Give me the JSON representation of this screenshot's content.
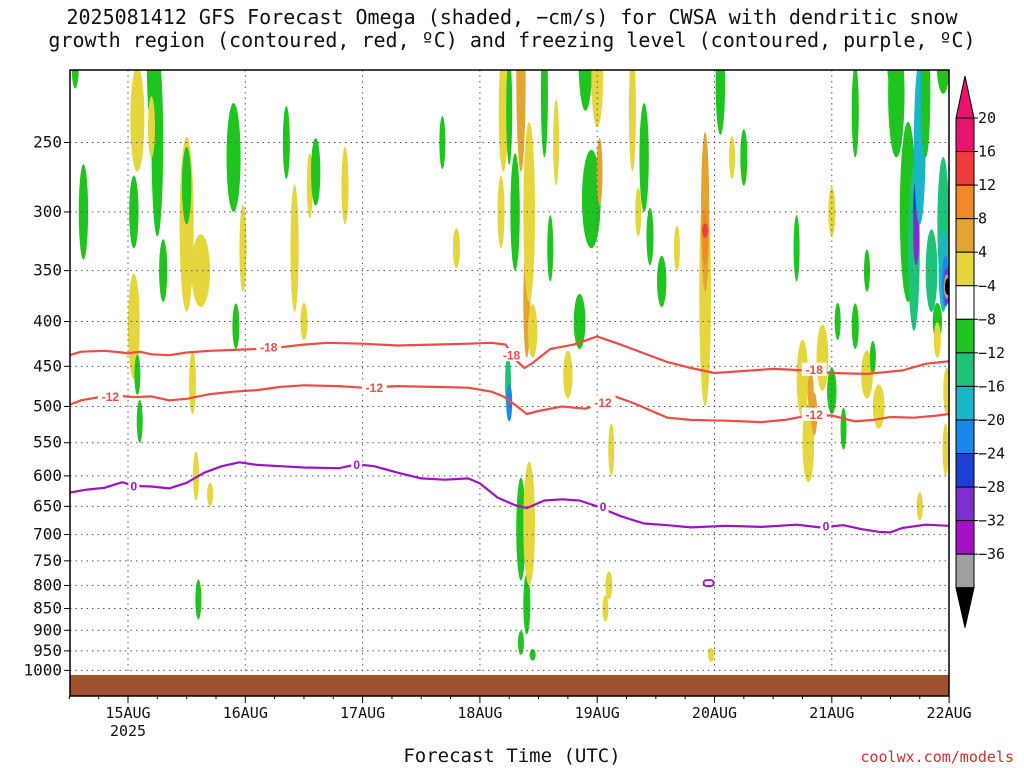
{
  "title_line1": "2025081412 GFS Forecast Omega (shaded, −cm/s) for CWSA with dendritic snow",
  "title_line2": "growth region (contoured, red, ºC) and freezing level (contoured, purple, ºC)",
  "xlabel": "Forecast Time (UTC)",
  "credit": "coolwx.com/models",
  "chart_data": {
    "type": "heatmap",
    "xlabel": "Forecast Time (UTC)",
    "ylabel": "",
    "x_tick_labels": [
      "15AUG",
      "16AUG",
      "17AUG",
      "18AUG",
      "19AUG",
      "20AUG",
      "21AUG",
      "22AUG"
    ],
    "x_year_label": "2025",
    "x_range_days": [
      14.5,
      22.0
    ],
    "y_tick_labels": [
      "250",
      "300",
      "350",
      "400",
      "450",
      "500",
      "550",
      "600",
      "650",
      "700",
      "750",
      "800",
      "850",
      "900",
      "950",
      "1000"
    ],
    "y_axis": "pressure (hPa, log scale, inverted)",
    "y_range": [
      200,
      1020
    ],
    "grid": true,
    "colorbar": {
      "labels": [
        "20",
        "16",
        "12",
        "8",
        "4",
        "−4",
        "−8",
        "−12",
        "−16",
        "−20",
        "−24",
        "−28",
        "−32",
        "−36"
      ],
      "colors": [
        "#e8136f",
        "#f03c3c",
        "#f08a28",
        "#e2a531",
        "#e6d63d",
        "#ffffff",
        "#1fc41f",
        "#1ec37a",
        "#1ab5c7",
        "#1a86e8",
        "#1c3fd6",
        "#7d2fd1",
        "#a313c4",
        "#a0a0a0"
      ],
      "over_color": "#e8136f",
      "under_color": "#000000"
    },
    "contours": [
      {
        "label": "-18",
        "color": "#f04c44",
        "points": [
          [
            14.5,
            437
          ],
          [
            14.6,
            433
          ],
          [
            14.8,
            432
          ],
          [
            14.95,
            434
          ],
          [
            15.0,
            435
          ],
          [
            15.1,
            433
          ],
          [
            15.2,
            436
          ],
          [
            15.35,
            437
          ],
          [
            15.5,
            434
          ],
          [
            15.7,
            432
          ],
          [
            15.9,
            431
          ],
          [
            16.1,
            430
          ],
          [
            16.3,
            428
          ],
          [
            16.5,
            425
          ],
          [
            16.7,
            423
          ],
          [
            17.0,
            424
          ],
          [
            17.3,
            426
          ],
          [
            17.6,
            425
          ],
          [
            17.9,
            424
          ],
          [
            18.1,
            423
          ],
          [
            18.22,
            425
          ],
          [
            18.3,
            442
          ],
          [
            18.38,
            452
          ],
          [
            18.45,
            446
          ],
          [
            18.6,
            430
          ],
          [
            18.8,
            425
          ],
          [
            19.0,
            416
          ],
          [
            19.2,
            425
          ],
          [
            19.4,
            435
          ],
          [
            19.6,
            445
          ],
          [
            19.8,
            452
          ],
          [
            20.0,
            458
          ],
          [
            20.2,
            456
          ],
          [
            20.5,
            453
          ],
          [
            20.8,
            455
          ],
          [
            21.0,
            458
          ],
          [
            21.3,
            459
          ],
          [
            21.6,
            455
          ],
          [
            21.8,
            447
          ],
          [
            22.0,
            444
          ]
        ],
        "labels_at": [
          [
            16.2,
            428
          ],
          [
            18.27,
            437
          ],
          [
            20.85,
            454
          ]
        ]
      },
      {
        "label": "-12",
        "color": "#f04c44",
        "points": [
          [
            14.5,
            498
          ],
          [
            14.6,
            492
          ],
          [
            14.75,
            488
          ],
          [
            14.9,
            486
          ],
          [
            15.05,
            488
          ],
          [
            15.2,
            487
          ],
          [
            15.35,
            492
          ],
          [
            15.5,
            490
          ],
          [
            15.7,
            484
          ],
          [
            15.9,
            481
          ],
          [
            16.1,
            479
          ],
          [
            16.3,
            475
          ],
          [
            16.5,
            473
          ],
          [
            16.8,
            474
          ],
          [
            17.0,
            476
          ],
          [
            17.3,
            474
          ],
          [
            17.6,
            475
          ],
          [
            17.9,
            476
          ],
          [
            18.1,
            481
          ],
          [
            18.2,
            487
          ],
          [
            18.3,
            498
          ],
          [
            18.4,
            510
          ],
          [
            18.5,
            506
          ],
          [
            18.7,
            500
          ],
          [
            18.9,
            503
          ],
          [
            19.0,
            498
          ],
          [
            19.15,
            487
          ],
          [
            19.3,
            495
          ],
          [
            19.45,
            505
          ],
          [
            19.6,
            515
          ],
          [
            19.8,
            518
          ],
          [
            20.1,
            519
          ],
          [
            20.4,
            521
          ],
          [
            20.6,
            518
          ],
          [
            20.8,
            512
          ],
          [
            21.0,
            512
          ],
          [
            21.2,
            520
          ],
          [
            21.35,
            518
          ],
          [
            21.5,
            514
          ],
          [
            21.7,
            515
          ],
          [
            21.9,
            512
          ],
          [
            22.0,
            510
          ]
        ],
        "labels_at": [
          [
            14.85,
            487
          ],
          [
            17.1,
            476
          ],
          [
            19.05,
            495
          ],
          [
            20.85,
            511
          ]
        ]
      },
      {
        "label": "0",
        "color": "#9e12c8",
        "points": [
          [
            14.5,
            627
          ],
          [
            14.65,
            622
          ],
          [
            14.8,
            619
          ],
          [
            14.95,
            610
          ],
          [
            15.05,
            616
          ],
          [
            15.2,
            617
          ],
          [
            15.35,
            620
          ],
          [
            15.5,
            611
          ],
          [
            15.65,
            595
          ],
          [
            15.8,
            585
          ],
          [
            15.95,
            579
          ],
          [
            16.1,
            583
          ],
          [
            16.3,
            585
          ],
          [
            16.5,
            587
          ],
          [
            16.8,
            588
          ],
          [
            16.95,
            582
          ],
          [
            17.1,
            585
          ],
          [
            17.3,
            595
          ],
          [
            17.5,
            604
          ],
          [
            17.7,
            606
          ],
          [
            17.9,
            604
          ],
          [
            18.0,
            612
          ],
          [
            18.15,
            635
          ],
          [
            18.3,
            648
          ],
          [
            18.4,
            653
          ],
          [
            18.55,
            640
          ],
          [
            18.7,
            638
          ],
          [
            18.85,
            640
          ],
          [
            19.0,
            650
          ],
          [
            19.2,
            667
          ],
          [
            19.4,
            680
          ],
          [
            19.6,
            683
          ],
          [
            19.8,
            687
          ],
          [
            20.1,
            684
          ],
          [
            20.4,
            686
          ],
          [
            20.7,
            682
          ],
          [
            20.9,
            687
          ],
          [
            21.1,
            683
          ],
          [
            21.25,
            690
          ],
          [
            21.4,
            695
          ],
          [
            21.5,
            696
          ],
          [
            21.6,
            688
          ],
          [
            21.8,
            682
          ],
          [
            22.0,
            684
          ]
        ],
        "labels_at": [
          [
            15.05,
            616
          ],
          [
            16.95,
            582
          ],
          [
            19.05,
            650
          ],
          [
            20.95,
            684
          ]
        ]
      }
    ]
  }
}
